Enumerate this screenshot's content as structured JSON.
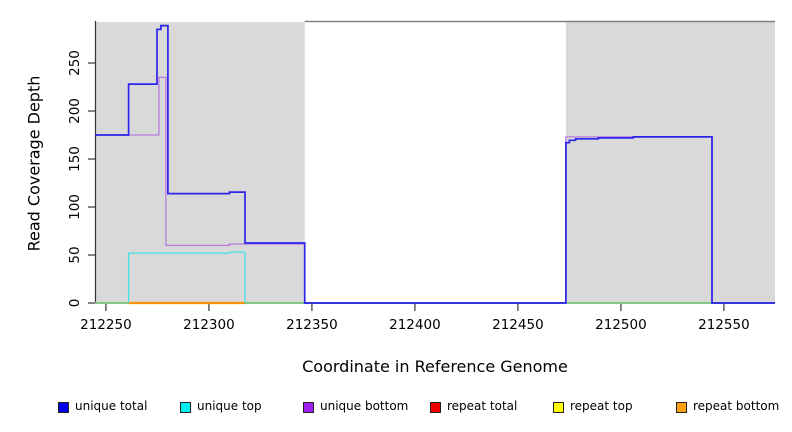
{
  "chart_data": {
    "type": "line",
    "title": "",
    "xlabel": "Coordinate in Reference Genome",
    "ylabel": "Read Coverage Depth",
    "xlim": [
      212244.7,
      212574.8
    ],
    "ylim": [
      0,
      293.75
    ],
    "x_ticks": [
      212250,
      212300,
      212350,
      212400,
      212450,
      212500,
      212550
    ],
    "y_ticks": [
      0,
      50,
      100,
      150,
      200,
      250
    ],
    "grid": false,
    "legend_position": "bottom",
    "colors": {
      "shaded_region": "#d9d9d9",
      "plot_border": "#808080",
      "axis": "#333333",
      "text": "#000000"
    },
    "shaded_regions": [
      [
        212244.7,
        212346.5
      ],
      [
        212473.3,
        212574.8
      ]
    ],
    "series": [
      {
        "name": "repeat total",
        "line_color": "#e00000",
        "stroke_width": 1,
        "points": [
          [
            212244.7,
            0
          ],
          [
            212574.8,
            0
          ]
        ]
      },
      {
        "name": "repeat top",
        "line_color": "#84c884",
        "stroke_width": 2,
        "points": [
          [
            212244.7,
            0
          ],
          [
            212574.8,
            0
          ]
        ]
      },
      {
        "name": "repeat bottom",
        "line_color": "#ff9300",
        "stroke_width": 2.2,
        "points": [
          [
            212261,
            0
          ],
          [
            212317.5,
            0
          ]
        ]
      },
      {
        "name": "unique bottom",
        "line_color": "#b97ae0",
        "stroke_width": 1.3,
        "points": [
          [
            212244.7,
            175
          ],
          [
            212275.7,
            175
          ],
          [
            212275.7,
            235
          ],
          [
            212279.1,
            235
          ],
          [
            212279.1,
            60
          ],
          [
            212310,
            60
          ],
          [
            212310,
            61.5
          ],
          [
            212346.5,
            61.5
          ],
          [
            212346.5,
            0
          ],
          [
            212473.3,
            0
          ],
          [
            212473.3,
            173
          ],
          [
            212544.2,
            173
          ],
          [
            212544.2,
            0
          ],
          [
            212574.8,
            0
          ]
        ]
      },
      {
        "name": "unique top",
        "line_color": "#45e0e0",
        "stroke_width": 1.3,
        "points": [
          [
            212261,
            0
          ],
          [
            212261,
            52
          ],
          [
            212310,
            52
          ],
          [
            212310,
            53
          ],
          [
            212317.5,
            53
          ],
          [
            212317.5,
            0
          ]
        ]
      },
      {
        "name": "unique total",
        "line_color": "#2c24ea",
        "stroke_width": 1.7,
        "points": [
          [
            212244.7,
            175
          ],
          [
            212261,
            175
          ],
          [
            212261,
            228
          ],
          [
            212274.8,
            228
          ],
          [
            212274.8,
            285
          ],
          [
            212276.7,
            285
          ],
          [
            212276.7,
            289
          ],
          [
            212280.1,
            289
          ],
          [
            212280.1,
            114
          ],
          [
            212310,
            114
          ],
          [
            212310,
            115.5
          ],
          [
            212317.5,
            115.5
          ],
          [
            212317.5,
            62.5
          ],
          [
            212346.5,
            62.5
          ],
          [
            212346.5,
            0
          ],
          [
            212473.3,
            0
          ],
          [
            212473.3,
            167
          ],
          [
            212475,
            167
          ],
          [
            212475,
            169.5
          ],
          [
            212478,
            169.5
          ],
          [
            212478,
            171
          ],
          [
            212489,
            171
          ],
          [
            212489,
            172
          ],
          [
            212506,
            172
          ],
          [
            212506,
            173
          ],
          [
            212544.2,
            173
          ],
          [
            212544.2,
            0
          ],
          [
            212574.8,
            0
          ]
        ]
      }
    ],
    "legend": [
      {
        "label": "unique total",
        "color": "#0000ee"
      },
      {
        "label": "unique top",
        "color": "#00eeee"
      },
      {
        "label": "unique bottom",
        "color": "#a020f0"
      },
      {
        "label": "repeat total",
        "color": "#ee0000"
      },
      {
        "label": "repeat top",
        "color": "#ffff00"
      },
      {
        "label": "repeat bottom",
        "color": "#ffa010"
      }
    ]
  }
}
